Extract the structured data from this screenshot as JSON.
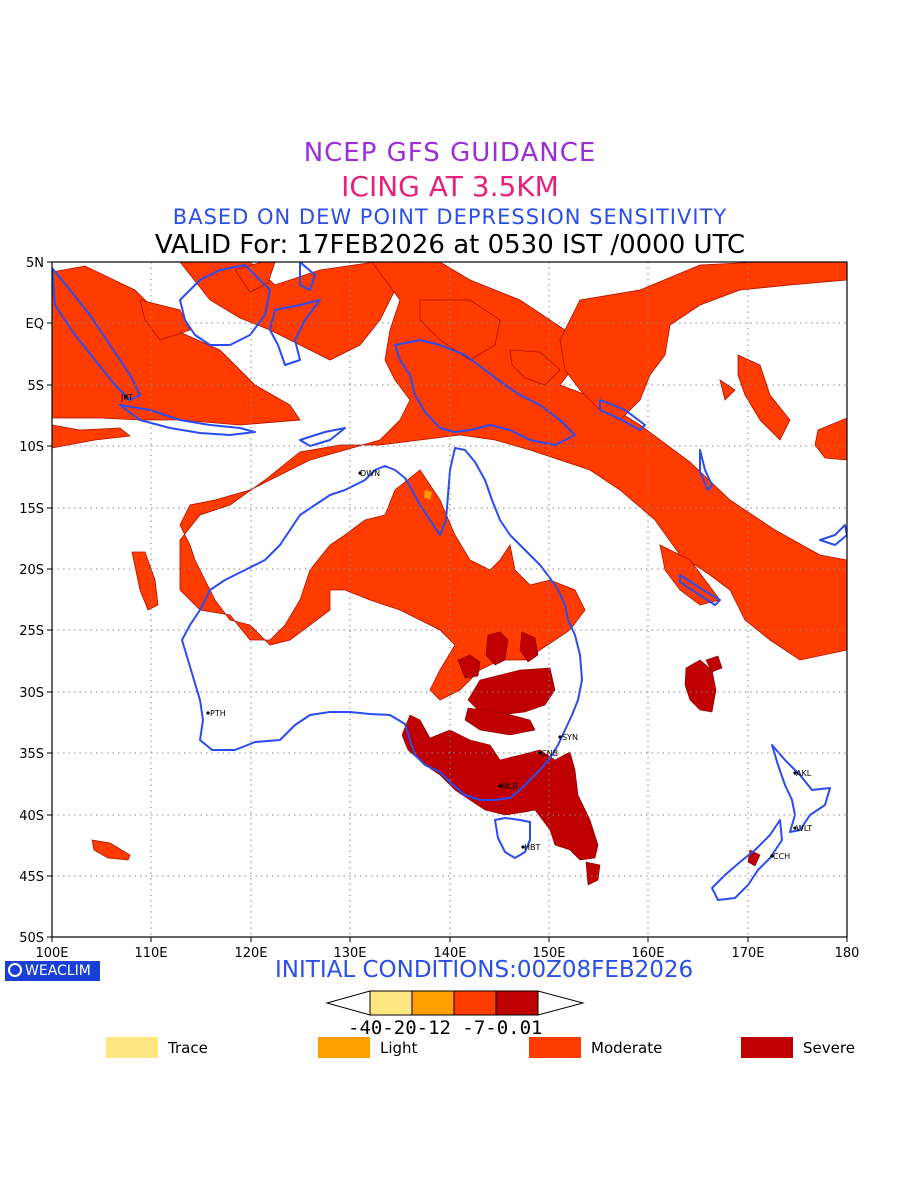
{
  "header": {
    "line1": "NCEP GFS GUIDANCE",
    "line2": "ICING AT 3.5KM",
    "line3": "BASED ON DEW POINT DEPRESSION SENSITIVITY",
    "line4": "VALID For: 17FEB2026 at 0530 IST /0000 UTC"
  },
  "axes": {
    "lat_labels": [
      "5N",
      "EQ",
      "5S",
      "10S",
      "15S",
      "20S",
      "25S",
      "30S",
      "35S",
      "40S",
      "45S",
      "50S"
    ],
    "lon_labels": [
      "100E",
      "110E",
      "120E",
      "130E",
      "140E",
      "150E",
      "160E",
      "170E",
      "180"
    ]
  },
  "cities": [
    "JKT",
    "DWN",
    "PTH",
    "SYN",
    "CNB",
    "MLB",
    "HBT",
    "AKL",
    "WLT",
    "CCH"
  ],
  "footer": {
    "brand": "WEACLIM",
    "initial_conditions": "INITIAL CONDITIONS:00Z08FEB2026",
    "scale_ticks": "-40-20-12 -7-0.01"
  },
  "colors": {
    "trace": "#ffe680",
    "light": "#ffa000",
    "moderate": "#ff3b00",
    "severe": "#c00000",
    "coastline": "#2b4cf0"
  },
  "legend": [
    {
      "label": "Trace",
      "color": "#ffe680"
    },
    {
      "label": "Light",
      "color": "#ffa000"
    },
    {
      "label": "Moderate",
      "color": "#ff3b00"
    },
    {
      "label": "Severe",
      "color": "#c00000"
    }
  ]
}
